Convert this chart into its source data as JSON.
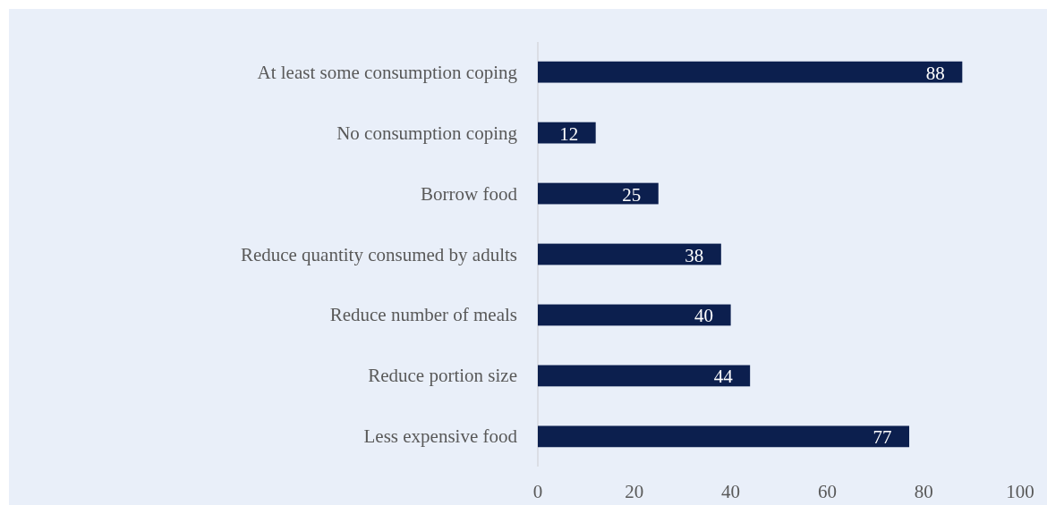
{
  "chart_data": {
    "type": "bar",
    "orientation": "horizontal",
    "categories": [
      "At least some consumption coping",
      "No consumption coping",
      "Borrow food",
      "Reduce quantity consumed by adults",
      "Reduce number of meals",
      "Reduce portion size",
      "Less expensive food"
    ],
    "values": [
      88,
      12,
      25,
      38,
      40,
      44,
      77
    ],
    "color": "#0c1f4e",
    "xlim": [
      0,
      100
    ],
    "xticks": [
      0,
      20,
      40,
      60,
      80,
      100
    ],
    "grid": false,
    "data_labels": true
  }
}
